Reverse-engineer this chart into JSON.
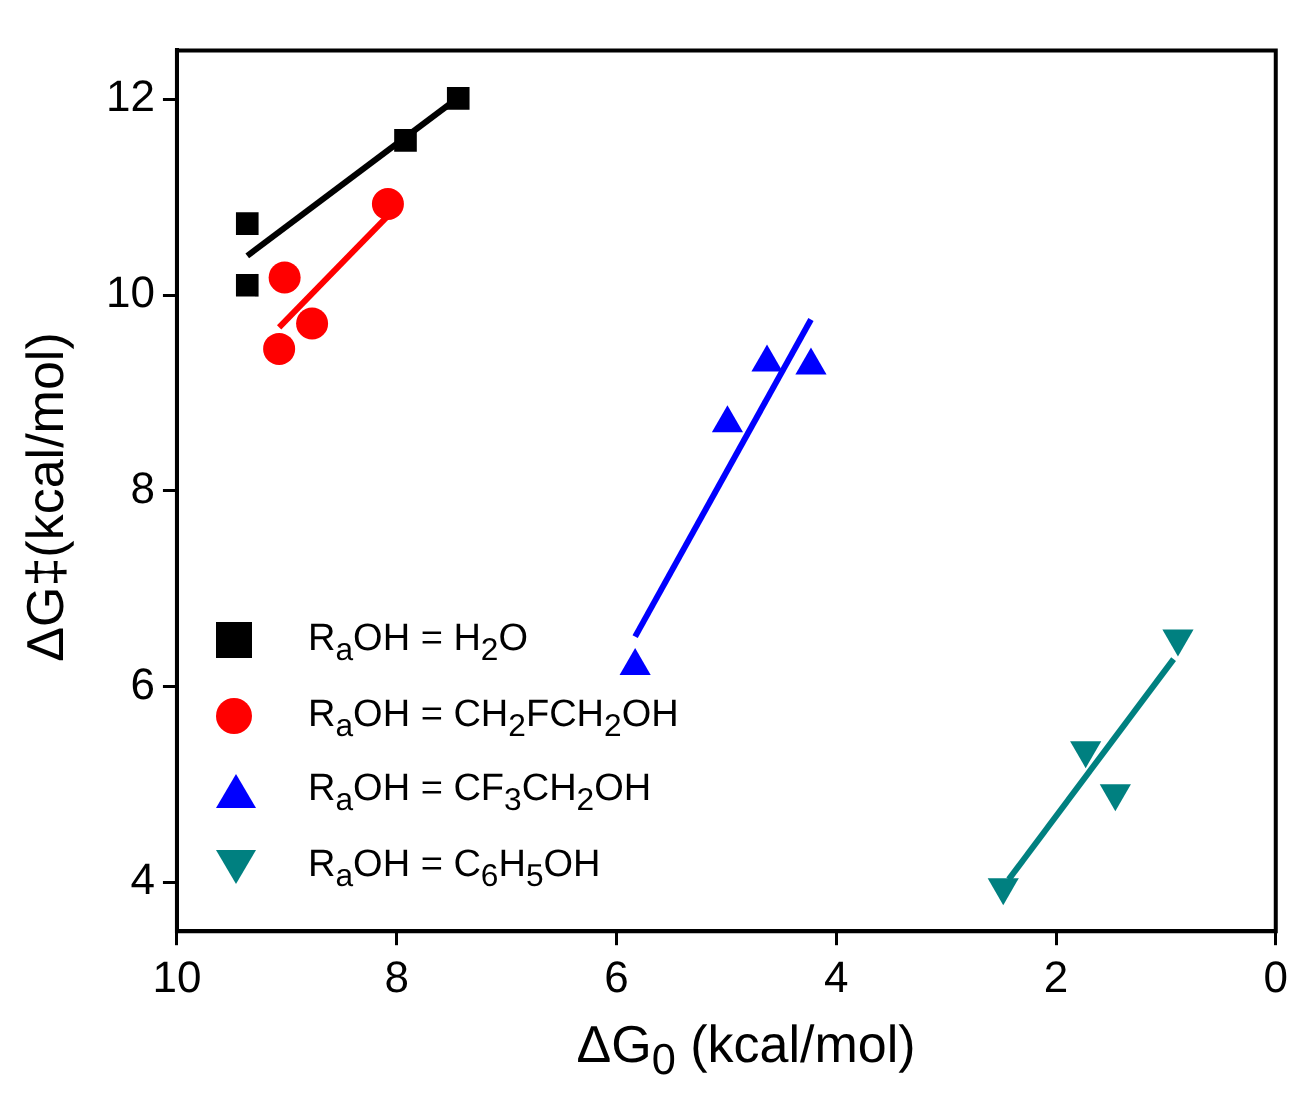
{
  "chart_data": {
    "type": "scatter",
    "xlabel": "ΔG$_{0}$ (kcal/mol)",
    "ylabel": "ΔG‡(kcal/mol)",
    "xlim": [
      10,
      0
    ],
    "xticks": [
      10,
      8,
      6,
      4,
      2,
      0
    ],
    "ylim": [
      3.5,
      12.5
    ],
    "yticks": [
      4,
      6,
      8,
      10,
      12
    ],
    "legend": "bottom left",
    "grid": false,
    "series": [
      {
        "name": "R$_{a}$OH = H$_{2}$O",
        "color": "#000000",
        "marker": "square",
        "x": [
          9.36,
          9.36,
          7.92,
          7.44
        ],
        "values": [
          10.73,
          10.1,
          11.58,
          12.01
        ]
      },
      {
        "name": "R$_{a}$OH = CH$_{2}$FCH$_{2}$OH",
        "color": "#ff0000",
        "marker": "circle",
        "x": [
          9.02,
          9.07,
          8.77,
          8.08
        ],
        "values": [
          10.18,
          9.45,
          9.71,
          10.93
        ]
      },
      {
        "name": "R$_{a}$OH = CF$_{3}$CH$_{2}$OH",
        "color": "#0000ff",
        "marker": "triangle",
        "x": [
          5.83,
          4.99,
          4.63,
          4.23
        ],
        "values": [
          6.21,
          8.69,
          9.31,
          9.28
        ]
      },
      {
        "name": "R$_{a}$OH = C$_{6}$H$_{5}$OH",
        "color": "#008080",
        "marker": "triangle-down",
        "x": [
          2.48,
          1.73,
          1.46,
          0.89
        ],
        "values": [
          3.95,
          5.35,
          4.91,
          6.49
        ]
      },
      {
        "type": "line",
        "color": "#000000",
        "marker": "none",
        "x": [
          9.36,
          7.52
        ],
        "values": [
          10.4,
          11.95
        ]
      },
      {
        "type": "line",
        "color": "#ff0000",
        "marker": "none",
        "x": [
          9.07,
          8.08
        ],
        "values": [
          9.67,
          10.81
        ]
      },
      {
        "type": "line",
        "color": "#0000ff",
        "marker": "none",
        "x": [
          5.83,
          4.23
        ],
        "values": [
          6.51,
          9.75
        ]
      },
      {
        "type": "line",
        "color": "#008080",
        "marker": "none",
        "x": [
          2.43,
          0.93
        ],
        "values": [
          4.03,
          6.28
        ]
      }
    ]
  }
}
